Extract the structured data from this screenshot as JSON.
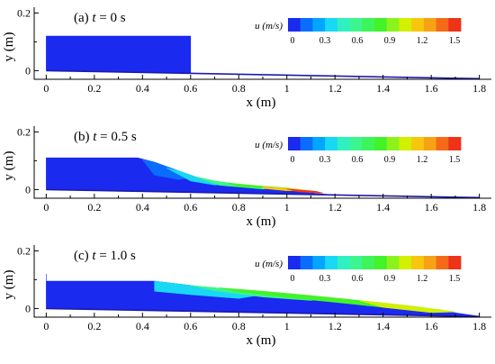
{
  "chart_data": {
    "type": "heatmap",
    "description_units": "x (m), y (m), colour = u (m/s)",
    "colorbar": {
      "title": "u (m/s)",
      "min": 0,
      "max": 1.6,
      "colors": [
        "#1a2aef",
        "#0a6dff",
        "#00a6ff",
        "#19d8f3",
        "#2ff0c0",
        "#3df58f",
        "#3cf55a",
        "#42f32a",
        "#8cf21c",
        "#d2f000",
        "#f8c60d",
        "#f7a215",
        "#f46a18",
        "#ef3319"
      ],
      "tick_labels": [
        "0",
        "0.3",
        "0.6",
        "0.9",
        "1.2",
        "1.5"
      ],
      "tick_values": [
        0,
        0.3,
        0.6,
        0.9,
        1.2,
        1.5
      ]
    },
    "panels": [
      {
        "label_prefix": "(a)",
        "time_label": "t = 0 s",
        "xlabel": "x (m)",
        "ylabel": "y (m)",
        "xlim": [
          -0.05,
          1.85
        ],
        "ylim": [
          -0.03,
          0.22
        ],
        "x_ticks": [
          "0",
          "0.2",
          "0.4",
          "0.6",
          "0.8",
          "1",
          "1.2",
          "1.4",
          "1.6",
          "1.8"
        ],
        "x_tick_values": [
          0,
          0.2,
          0.4,
          0.6,
          0.8,
          1.0,
          1.2,
          1.4,
          1.6,
          1.8
        ],
        "y_ticks": [
          "0",
          "0.2"
        ],
        "y_tick_values": [
          0,
          0.2
        ],
        "bed": [
          [
            0,
            0
          ],
          [
            1.8,
            -0.028
          ]
        ],
        "regions": [
          {
            "u": 0.02,
            "polygon": [
              [
                0,
                0.12
              ],
              [
                0.6,
                0.12
              ],
              [
                0.6,
                -0.009
              ],
              [
                0,
                0
              ]
            ]
          }
        ]
      },
      {
        "label_prefix": "(b)",
        "time_label": "t = 0.5 s",
        "xlabel": "x (m)",
        "ylabel": "y (m)",
        "xlim": [
          -0.05,
          1.85
        ],
        "ylim": [
          -0.03,
          0.22
        ],
        "x_ticks": [
          "0",
          "0.2",
          "0.4",
          "0.6",
          "0.8",
          "1",
          "1.2",
          "1.4",
          "1.6",
          "1.8"
        ],
        "x_tick_values": [
          0,
          0.2,
          0.4,
          0.6,
          0.8,
          1.0,
          1.2,
          1.4,
          1.6,
          1.8
        ],
        "y_ticks": [
          "0",
          "0.2"
        ],
        "y_tick_values": [
          0,
          0.2
        ],
        "bed": [
          [
            0,
            0
          ],
          [
            1.8,
            -0.028
          ]
        ],
        "regions": [
          {
            "u": 0.05,
            "polygon": [
              [
                0,
                0.11
              ],
              [
                0.38,
                0.11
              ],
              [
                0.45,
                0.095
              ],
              [
                0.55,
                0.065
              ],
              [
                0.65,
                0.035
              ],
              [
                0.8,
                0.012
              ],
              [
                1.0,
                -0.004
              ],
              [
                1.2,
                -0.019
              ],
              [
                1.0,
                -0.016
              ],
              [
                0.8,
                -0.012
              ],
              [
                0.4,
                -0.006
              ],
              [
                0,
                0
              ]
            ]
          },
          {
            "u": 0.2,
            "polygon": [
              [
                0.4,
                0.104
              ],
              [
                0.45,
                0.095
              ],
              [
                0.55,
                0.065
              ],
              [
                0.62,
                0.044
              ],
              [
                0.55,
                0.035
              ],
              [
                0.45,
                0.05
              ]
            ]
          },
          {
            "u": 0.35,
            "polygon": [
              [
                0.5,
                0.075
              ],
              [
                0.55,
                0.065
              ],
              [
                0.65,
                0.035
              ],
              [
                0.75,
                0.019
              ],
              [
                0.7,
                0.016
              ],
              [
                0.6,
                0.03
              ]
            ]
          },
          {
            "u": 0.65,
            "polygon": [
              [
                0.62,
                0.045
              ],
              [
                0.7,
                0.03
              ],
              [
                0.82,
                0.016
              ],
              [
                0.95,
                0.008
              ],
              [
                0.9,
                0.002
              ],
              [
                0.72,
                0.015
              ]
            ]
          },
          {
            "u": 0.85,
            "polygon": [
              [
                0.75,
                0.023
              ],
              [
                0.88,
                0.013
              ],
              [
                1.0,
                0.006
              ],
              [
                1.05,
                0.001
              ],
              [
                0.95,
                0.002
              ],
              [
                0.8,
                0.01
              ]
            ]
          },
          {
            "u": 1.2,
            "polygon": [
              [
                0.9,
                0.01
              ],
              [
                1.0,
                0.005
              ],
              [
                1.1,
                -0.004
              ],
              [
                1.0,
                -0.004
              ],
              [
                0.9,
                0.004
              ]
            ]
          },
          {
            "u": 1.5,
            "polygon": [
              [
                1.0,
                0.002
              ],
              [
                1.12,
                -0.006
              ],
              [
                1.15,
                -0.012
              ],
              [
                1.05,
                -0.008
              ]
            ]
          }
        ]
      },
      {
        "label_prefix": "(c)",
        "time_label": "t = 1.0 s",
        "xlabel": "x (m)",
        "ylabel": "y (m)",
        "xlim": [
          -0.05,
          1.85
        ],
        "ylim": [
          -0.03,
          0.22
        ],
        "x_ticks": [
          "0",
          "0.2",
          "0.4",
          "0.6",
          "0.8",
          "1",
          "1.2",
          "1.4",
          "1.6",
          "1.8"
        ],
        "x_tick_values": [
          0,
          0.2,
          0.4,
          0.6,
          0.8,
          1.0,
          1.2,
          1.4,
          1.6,
          1.8
        ],
        "y_ticks": [
          "0",
          "0.2"
        ],
        "y_tick_values": [
          0,
          0.2
        ],
        "bed": [
          [
            0,
            0
          ],
          [
            1.8,
            -0.028
          ]
        ],
        "regions": [
          {
            "u": 0.05,
            "polygon": [
              [
                0,
                0.12
              ],
              [
                0.0,
                0.095
              ],
              [
                0.45,
                0.095
              ],
              [
                0.6,
                0.08
              ],
              [
                0.8,
                0.058
              ],
              [
                1.0,
                0.04
              ],
              [
                1.2,
                0.03
              ],
              [
                1.45,
                0.01
              ],
              [
                1.7,
                -0.015
              ],
              [
                1.8,
                -0.027
              ],
              [
                1.0,
                -0.016
              ],
              [
                0.4,
                -0.006
              ],
              [
                0,
                0
              ]
            ]
          },
          {
            "u": 0.35,
            "polygon": [
              [
                0.45,
                0.095
              ],
              [
                0.6,
                0.08
              ],
              [
                0.8,
                0.058
              ],
              [
                0.9,
                0.048
              ],
              [
                0.8,
                0.035
              ],
              [
                0.6,
                0.048
              ],
              [
                0.45,
                0.06
              ]
            ]
          },
          {
            "u": 0.65,
            "polygon": [
              [
                0.6,
                0.08
              ],
              [
                0.75,
                0.068
              ],
              [
                0.95,
                0.052
              ],
              [
                1.15,
                0.036
              ],
              [
                1.1,
                0.028
              ],
              [
                0.9,
                0.04
              ],
              [
                0.7,
                0.062
              ]
            ]
          },
          {
            "u": 0.85,
            "polygon": [
              [
                0.72,
                0.072
              ],
              [
                0.9,
                0.06
              ],
              [
                1.1,
                0.045
              ],
              [
                1.3,
                0.028
              ],
              [
                1.5,
                0.01
              ],
              [
                1.65,
                -0.006
              ],
              [
                1.6,
                -0.012
              ],
              [
                1.4,
                0.004
              ],
              [
                1.2,
                0.022
              ],
              [
                1.0,
                0.038
              ],
              [
                0.8,
                0.058
              ]
            ]
          },
          {
            "u": 1.05,
            "polygon": [
              [
                1.3,
                0.028
              ],
              [
                1.5,
                0.01
              ],
              [
                1.7,
                -0.012
              ],
              [
                1.6,
                -0.014
              ],
              [
                1.4,
                0.004
              ]
            ]
          }
        ]
      }
    ]
  }
}
